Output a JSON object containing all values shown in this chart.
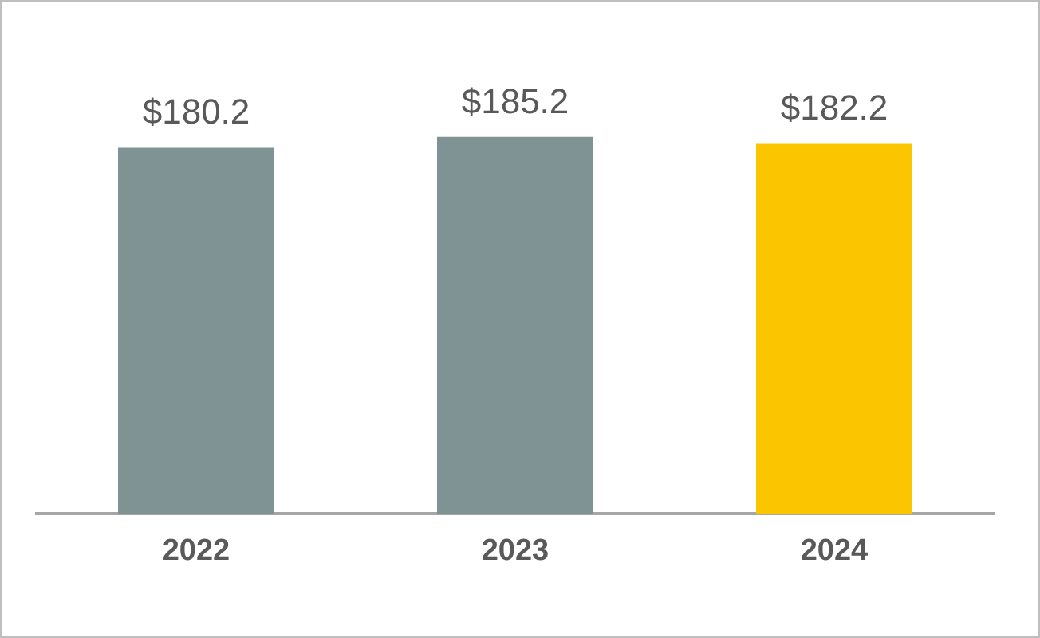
{
  "chart_data": {
    "type": "bar",
    "categories": [
      "2022",
      "2023",
      "2024"
    ],
    "values": [
      180.2,
      185.2,
      182.2
    ],
    "colors": [
      "#7f9395",
      "#7f9395",
      "#fbc600"
    ],
    "value_labels": [
      "$180.2",
      "$185.2",
      "$182.2"
    ],
    "grid": false,
    "legend": false
  }
}
